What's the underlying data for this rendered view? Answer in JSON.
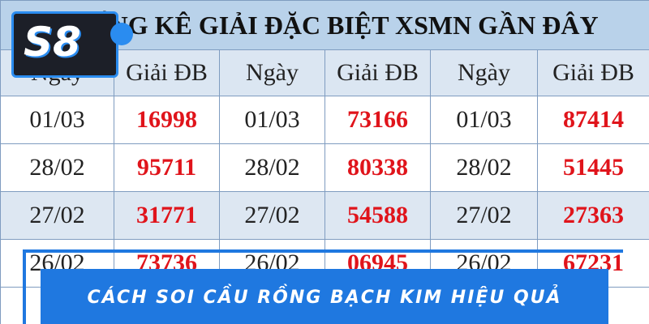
{
  "logo": {
    "text": "S8"
  },
  "table": {
    "title": "THỐNG KÊ GIẢI ĐẶC BIỆT XSMN GẦN ĐÂY",
    "headers": [
      "Ngày",
      "Giải ĐB",
      "Ngày",
      "Giải ĐB",
      "Ngày",
      "Giải ĐB"
    ],
    "rows": [
      [
        "01/03",
        "16998",
        "01/03",
        "73166",
        "01/03",
        "87414"
      ],
      [
        "28/02",
        "95711",
        "28/02",
        "80338",
        "28/02",
        "51445"
      ],
      [
        "27/02",
        "31771",
        "27/02",
        "54588",
        "27/02",
        "27363"
      ],
      [
        "26/02",
        "73736",
        "26/02",
        "06945",
        "26/02",
        "67231"
      ]
    ]
  },
  "banner": {
    "text": "CÁCH SOI CẦU RỒNG BẠCH KIM HIỆU QUẢ"
  }
}
